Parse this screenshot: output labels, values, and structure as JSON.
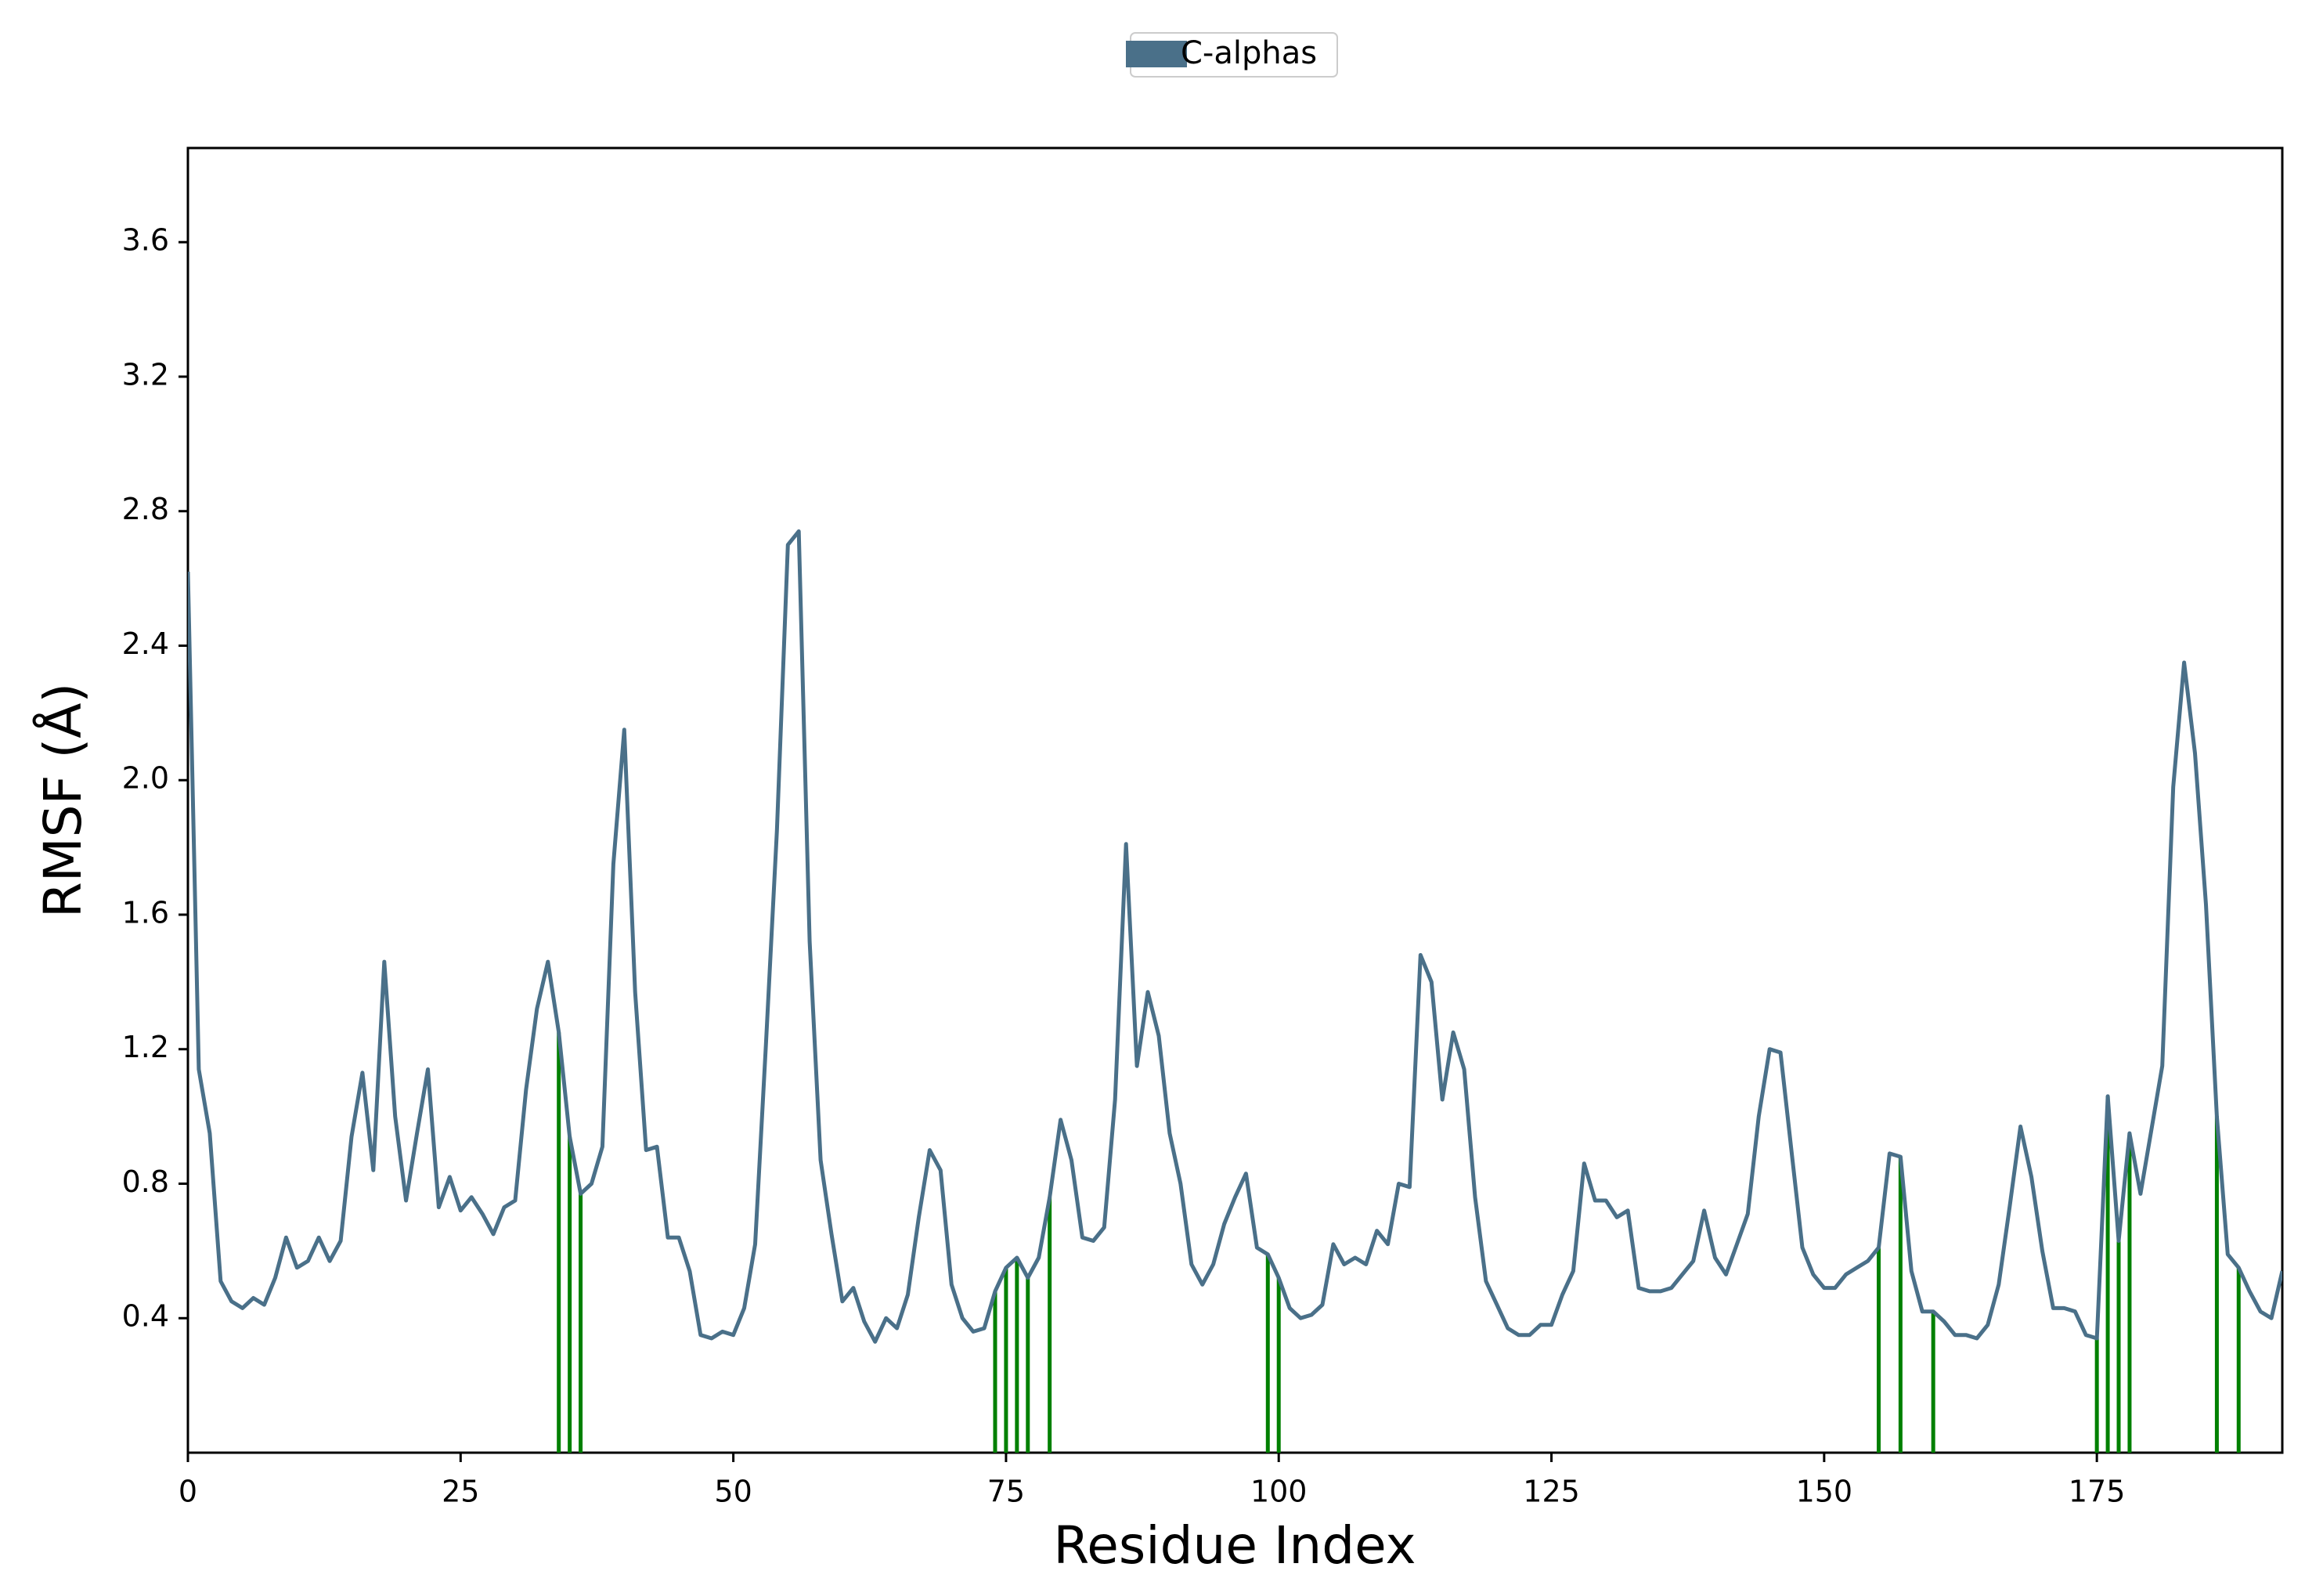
{
  "chart_data": {
    "type": "line",
    "xlabel": "Residue Index",
    "ylabel": "RMSF (Å)",
    "x": [
      0,
      1,
      2,
      3,
      4,
      5,
      6,
      7,
      8,
      9,
      10,
      11,
      12,
      13,
      14,
      15,
      16,
      17,
      18,
      19,
      20,
      21,
      22,
      23,
      24,
      25,
      26,
      27,
      28,
      29,
      30,
      31,
      32,
      33,
      34,
      35,
      36,
      37,
      38,
      39,
      40,
      41,
      42,
      43,
      44,
      45,
      46,
      47,
      48,
      49,
      50,
      51,
      52,
      53,
      54,
      55,
      56,
      57,
      58,
      59,
      60,
      61,
      62,
      63,
      64,
      65,
      66,
      67,
      68,
      69,
      70,
      71,
      72,
      73,
      74,
      75,
      76,
      77,
      78,
      79,
      80,
      81,
      82,
      83,
      84,
      85,
      86,
      87,
      88,
      89,
      90,
      91,
      92,
      93,
      94,
      95,
      96,
      97,
      98,
      99,
      100,
      101,
      102,
      103,
      104,
      105,
      106,
      107,
      108,
      109,
      110,
      111,
      112,
      113,
      114,
      115,
      116,
      117,
      118,
      119,
      120,
      121,
      122,
      123,
      124,
      125,
      126,
      127,
      128,
      129,
      130,
      131,
      132,
      133,
      134,
      135,
      136,
      137,
      138,
      139,
      140,
      141,
      142,
      143,
      144,
      145,
      146,
      147,
      148,
      149,
      150,
      151,
      152,
      153,
      154,
      155,
      156,
      157,
      158,
      159,
      160,
      161,
      162,
      163,
      164,
      165,
      166,
      167,
      168,
      169,
      170,
      171,
      172,
      173,
      174,
      175,
      176,
      177,
      178,
      179,
      180,
      181,
      182,
      183,
      184,
      185,
      186,
      187,
      188,
      189,
      190,
      191,
      192
    ],
    "series": [
      {
        "name": "C-alphas",
        "color": "#4a7089",
        "values": [
          2.62,
          1.14,
          0.95,
          0.51,
          0.45,
          0.43,
          0.46,
          0.44,
          0.52,
          0.64,
          0.55,
          0.57,
          0.64,
          0.57,
          0.63,
          0.94,
          1.13,
          0.84,
          1.46,
          1.0,
          0.75,
          0.95,
          1.14,
          0.73,
          0.82,
          0.72,
          0.76,
          0.71,
          0.65,
          0.73,
          0.75,
          1.08,
          1.32,
          1.46,
          1.25,
          0.94,
          0.77,
          0.8,
          0.91,
          1.75,
          2.15,
          1.37,
          0.9,
          0.91,
          0.64,
          0.64,
          0.54,
          0.35,
          0.34,
          0.36,
          0.35,
          0.43,
          0.62,
          1.22,
          1.85,
          2.7,
          2.74,
          1.52,
          0.87,
          0.65,
          0.45,
          0.49,
          0.39,
          0.33,
          0.4,
          0.37,
          0.47,
          0.7,
          0.9,
          0.84,
          0.5,
          0.4,
          0.36,
          0.37,
          0.48,
          0.55,
          0.58,
          0.52,
          0.58,
          0.76,
          0.99,
          0.87,
          0.64,
          0.63,
          0.67,
          1.05,
          1.81,
          1.15,
          1.37,
          1.24,
          0.95,
          0.8,
          0.56,
          0.5,
          0.56,
          0.68,
          0.76,
          0.83,
          0.61,
          0.59,
          0.52,
          0.43,
          0.4,
          0.41,
          0.44,
          0.62,
          0.56,
          0.58,
          0.56,
          0.66,
          0.62,
          0.8,
          0.79,
          1.48,
          1.4,
          1.05,
          1.25,
          1.14,
          0.76,
          0.51,
          0.44,
          0.37,
          0.35,
          0.35,
          0.38,
          0.38,
          0.47,
          0.54,
          0.86,
          0.75,
          0.75,
          0.7,
          0.72,
          0.49,
          0.48,
          0.48,
          0.49,
          0.53,
          0.57,
          0.72,
          0.58,
          0.53,
          0.62,
          0.71,
          1.0,
          1.2,
          1.19,
          0.9,
          0.61,
          0.53,
          0.49,
          0.49,
          0.53,
          0.55,
          0.57,
          0.61,
          0.89,
          0.88,
          0.54,
          0.42,
          0.42,
          0.39,
          0.35,
          0.35,
          0.34,
          0.38,
          0.5,
          0.73,
          0.97,
          0.82,
          0.6,
          0.43,
          0.43,
          0.42,
          0.35,
          0.34,
          1.06,
          0.63,
          0.95,
          0.77,
          0.96,
          1.15,
          1.98,
          2.35,
          2.08,
          1.63,
          1.0,
          0.59,
          0.55,
          0.48,
          0.42,
          0.4,
          0.54
        ]
      }
    ],
    "contact_residues": [
      34,
      35,
      36,
      74,
      75,
      76,
      77,
      79,
      99,
      100,
      155,
      157,
      160,
      175,
      176,
      177,
      178,
      186,
      188
    ],
    "contact_color": "#008000",
    "xlim": [
      0,
      192
    ],
    "ylim": [
      0,
      3.88
    ],
    "xticks": [
      0,
      25,
      50,
      75,
      100,
      125,
      150,
      175
    ],
    "yticks": [
      0.4,
      0.8,
      1.2,
      1.6,
      {
        "value": 2,
        "label": "2.0"
      },
      2.4,
      2.8,
      3.2,
      3.6
    ],
    "legend": "top"
  }
}
